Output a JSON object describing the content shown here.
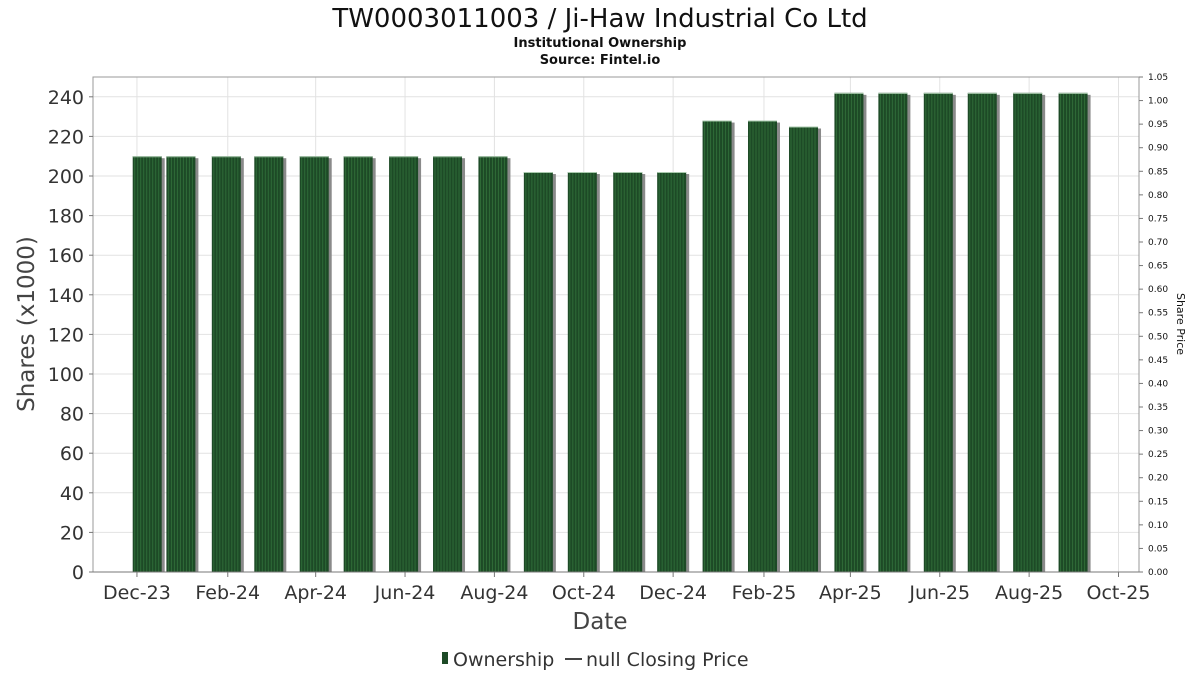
{
  "chart_data": {
    "type": "bar",
    "title": "TW0003011003 / Ji-Haw Industrial Co Ltd",
    "subtitle": "Institutional Ownership",
    "source": "Source: Fintel.io",
    "xlabel": "Date",
    "ylabel": "Shares (x1000)",
    "y2label": "Share Price",
    "ylim": [
      0,
      250
    ],
    "y_ticks": [
      0,
      20,
      40,
      60,
      80,
      100,
      120,
      140,
      160,
      180,
      200,
      220,
      240
    ],
    "y2lim": [
      0,
      1.05
    ],
    "y2_ticks": [
      "0.00",
      "0.05",
      "0.10",
      "0.15",
      "0.20",
      "0.25",
      "0.30",
      "0.35",
      "0.40",
      "0.45",
      "0.50",
      "0.55",
      "0.60",
      "0.65",
      "0.70",
      "0.75",
      "0.80",
      "0.85",
      "0.90",
      "0.95",
      "1.00",
      "1.05"
    ],
    "x_ticks": [
      "Dec-23",
      "Feb-24",
      "Apr-24",
      "Jun-24",
      "Aug-24",
      "Oct-24",
      "Dec-24",
      "Feb-25",
      "Apr-25",
      "Jun-25",
      "Aug-25",
      "Oct-25"
    ],
    "xlim": [
      "2023-11-01",
      "2025-10-15"
    ],
    "grid": true,
    "legend_position": "bottom",
    "series": [
      {
        "name": "Ownership",
        "color": "#1d4a26",
        "points": [
          {
            "date": "2023-12-08",
            "value": 210
          },
          {
            "date": "2023-12-31",
            "value": 210
          },
          {
            "date": "2024-01-31",
            "value": 210
          },
          {
            "date": "2024-02-29",
            "value": 210
          },
          {
            "date": "2024-03-31",
            "value": 210
          },
          {
            "date": "2024-04-30",
            "value": 210
          },
          {
            "date": "2024-05-31",
            "value": 210
          },
          {
            "date": "2024-06-30",
            "value": 210
          },
          {
            "date": "2024-07-31",
            "value": 210
          },
          {
            "date": "2024-08-31",
            "value": 202
          },
          {
            "date": "2024-09-30",
            "value": 202
          },
          {
            "date": "2024-10-31",
            "value": 202
          },
          {
            "date": "2024-11-30",
            "value": 202
          },
          {
            "date": "2024-12-31",
            "value": 228
          },
          {
            "date": "2025-01-31",
            "value": 228
          },
          {
            "date": "2025-02-28",
            "value": 225
          },
          {
            "date": "2025-03-31",
            "value": 242
          },
          {
            "date": "2025-04-30",
            "value": 242
          },
          {
            "date": "2025-05-31",
            "value": 242
          },
          {
            "date": "2025-06-30",
            "value": 242
          },
          {
            "date": "2025-07-31",
            "value": 242
          },
          {
            "date": "2025-08-31",
            "value": 242
          }
        ]
      }
    ],
    "legend": [
      {
        "label": "Ownership",
        "symbol": "bar",
        "color": "#1d4a26"
      },
      {
        "label": "null Closing Price",
        "symbol": "line",
        "color": "#444444"
      }
    ]
  }
}
